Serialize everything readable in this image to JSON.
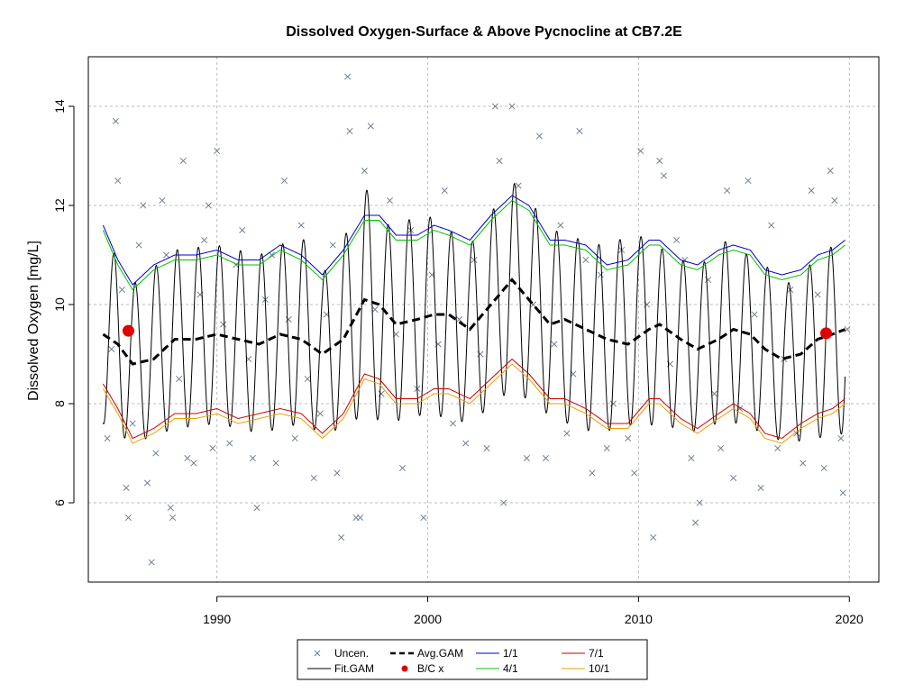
{
  "chart_data": {
    "type": "scatter",
    "title": "Dissolved Oxygen-Surface & Above Pycnocline at CB7.2E",
    "xlabel": "",
    "ylabel": "Dissolved Oxygen [mg/L]",
    "xlim": [
      1983.9,
      2021.4
    ],
    "ylim": [
      4.4,
      15.0
    ],
    "x_ticks": [
      1990,
      2000,
      2010,
      2020
    ],
    "y_ticks": [
      6,
      8,
      10,
      12,
      14
    ],
    "grid": true,
    "legend_position": "bottom-center",
    "legend": [
      {
        "label": "Uncen.",
        "marker": "x",
        "color": "#6b7b8c"
      },
      {
        "label": "Fit.GAM",
        "line": "solid",
        "color": "#000000"
      },
      {
        "label": "Avg.GAM",
        "line": "dashed",
        "color": "#000000"
      },
      {
        "label": "B/C x",
        "marker": "dot",
        "color": "#e00000"
      },
      {
        "label": "1/1",
        "line": "solid",
        "color": "#0000cc"
      },
      {
        "label": "4/1",
        "line": "solid",
        "color": "#00c000"
      },
      {
        "label": "7/1",
        "line": "solid",
        "color": "#cc0000"
      },
      {
        "label": "10/1",
        "line": "solid",
        "color": "#e8a000"
      }
    ],
    "series": [
      {
        "name": "Uncen.",
        "kind": "points",
        "color": "#6b7b8c",
        "points": [
          [
            1984.8,
            7.3
          ],
          [
            1985.0,
            9.1
          ],
          [
            1985.2,
            13.7
          ],
          [
            1985.3,
            12.5
          ],
          [
            1985.5,
            10.3
          ],
          [
            1985.7,
            6.3
          ],
          [
            1985.8,
            5.7
          ],
          [
            1986.0,
            7.6
          ],
          [
            1986.3,
            11.2
          ],
          [
            1986.5,
            12.0
          ],
          [
            1986.7,
            6.4
          ],
          [
            1986.9,
            4.8
          ],
          [
            1987.1,
            7.0
          ],
          [
            1987.4,
            12.1
          ],
          [
            1987.6,
            11.0
          ],
          [
            1987.8,
            5.9
          ],
          [
            1987.9,
            5.7
          ],
          [
            1988.2,
            8.5
          ],
          [
            1988.4,
            12.9
          ],
          [
            1988.6,
            6.9
          ],
          [
            1988.9,
            6.8
          ],
          [
            1989.2,
            10.2
          ],
          [
            1989.4,
            11.3
          ],
          [
            1989.6,
            12.0
          ],
          [
            1989.8,
            7.1
          ],
          [
            1990.0,
            13.1
          ],
          [
            1990.3,
            9.6
          ],
          [
            1990.6,
            7.2
          ],
          [
            1990.9,
            10.8
          ],
          [
            1991.2,
            11.5
          ],
          [
            1991.5,
            8.9
          ],
          [
            1991.7,
            6.9
          ],
          [
            1991.9,
            5.9
          ],
          [
            1992.3,
            10.1
          ],
          [
            1992.6,
            11.0
          ],
          [
            1992.8,
            6.8
          ],
          [
            1993.2,
            12.5
          ],
          [
            1993.4,
            9.7
          ],
          [
            1993.7,
            7.3
          ],
          [
            1994.0,
            11.6
          ],
          [
            1994.3,
            8.5
          ],
          [
            1994.6,
            6.5
          ],
          [
            1994.9,
            7.8
          ],
          [
            1995.2,
            9.8
          ],
          [
            1995.5,
            11.2
          ],
          [
            1995.7,
            6.6
          ],
          [
            1995.9,
            5.3
          ],
          [
            1996.2,
            14.6
          ],
          [
            1996.3,
            13.5
          ],
          [
            1996.6,
            5.7
          ],
          [
            1996.8,
            5.7
          ],
          [
            1997.0,
            12.7
          ],
          [
            1997.3,
            13.6
          ],
          [
            1997.5,
            9.9
          ],
          [
            1997.8,
            8.2
          ],
          [
            1998.2,
            12.1
          ],
          [
            1998.5,
            9.4
          ],
          [
            1998.8,
            6.7
          ],
          [
            1999.2,
            11.5
          ],
          [
            1999.5,
            8.3
          ],
          [
            1999.8,
            5.7
          ],
          [
            2000.2,
            10.6
          ],
          [
            2000.5,
            9.2
          ],
          [
            2000.8,
            12.3
          ],
          [
            2001.2,
            7.6
          ],
          [
            2001.5,
            9.7
          ],
          [
            2001.8,
            7.2
          ],
          [
            2002.2,
            10.9
          ],
          [
            2002.5,
            9.0
          ],
          [
            2002.8,
            7.1
          ],
          [
            2003.2,
            14.0
          ],
          [
            2003.4,
            12.9
          ],
          [
            2003.6,
            6.0
          ],
          [
            2004.0,
            14.0
          ],
          [
            2004.3,
            12.4
          ],
          [
            2004.7,
            6.9
          ],
          [
            2005.0,
            10.0
          ],
          [
            2005.3,
            13.4
          ],
          [
            2005.6,
            6.9
          ],
          [
            2006.0,
            9.2
          ],
          [
            2006.3,
            11.6
          ],
          [
            2006.6,
            7.4
          ],
          [
            2006.9,
            8.6
          ],
          [
            2007.2,
            13.5
          ],
          [
            2007.5,
            10.9
          ],
          [
            2007.8,
            6.6
          ],
          [
            2008.2,
            10.6
          ],
          [
            2008.5,
            7.1
          ],
          [
            2008.8,
            8.0
          ],
          [
            2009.2,
            11.1
          ],
          [
            2009.5,
            7.3
          ],
          [
            2009.8,
            6.6
          ],
          [
            2010.1,
            13.1
          ],
          [
            2010.4,
            10.0
          ],
          [
            2010.7,
            5.3
          ],
          [
            2011.0,
            12.9
          ],
          [
            2011.2,
            12.6
          ],
          [
            2011.5,
            8.8
          ],
          [
            2011.8,
            11.3
          ],
          [
            2012.2,
            10.9
          ],
          [
            2012.5,
            6.9
          ],
          [
            2012.7,
            5.6
          ],
          [
            2012.9,
            6.0
          ],
          [
            2013.3,
            10.5
          ],
          [
            2013.6,
            8.2
          ],
          [
            2013.9,
            7.1
          ],
          [
            2014.2,
            12.3
          ],
          [
            2014.5,
            6.5
          ],
          [
            2014.8,
            7.9
          ],
          [
            2015.2,
            12.5
          ],
          [
            2015.5,
            9.8
          ],
          [
            2015.8,
            6.3
          ],
          [
            2016.3,
            11.6
          ],
          [
            2016.6,
            7.1
          ],
          [
            2016.9,
            8.9
          ],
          [
            2017.2,
            10.3
          ],
          [
            2017.5,
            7.4
          ],
          [
            2017.8,
            6.8
          ],
          [
            2018.2,
            12.3
          ],
          [
            2018.5,
            10.2
          ],
          [
            2018.8,
            6.7
          ],
          [
            2019.1,
            12.7
          ],
          [
            2019.3,
            12.1
          ],
          [
            2019.6,
            7.3
          ],
          [
            2019.7,
            6.2
          ],
          [
            2019.9,
            9.5
          ]
        ]
      },
      {
        "name": "Fit.GAM",
        "kind": "seasonal-line",
        "color": "#000000",
        "x": [
          1984.6,
          1986,
          1988,
          1990,
          1992,
          1994,
          1995,
          1996,
          1997,
          1998,
          2000,
          2002,
          2004,
          2006,
          2008,
          2010,
          2012,
          2013,
          2014,
          2016,
          2017,
          2019.8
        ],
        "mean": [
          9.5,
          8.8,
          9.3,
          9.4,
          9.2,
          9.5,
          9.0,
          9.4,
          10.1,
          9.6,
          9.8,
          9.4,
          10.4,
          9.6,
          9.3,
          9.5,
          9.2,
          9.1,
          9.5,
          9.1,
          8.8,
          9.4
        ],
        "amplitude": [
          1.9,
          1.6,
          1.8,
          1.8,
          1.8,
          1.9,
          1.6,
          1.9,
          2.3,
          2.0,
          2.0,
          1.8,
          2.1,
          1.9,
          1.9,
          1.9,
          1.7,
          1.7,
          1.8,
          1.7,
          1.6,
          2.0
        ],
        "period_years": 1
      },
      {
        "name": "Avg.GAM",
        "kind": "line",
        "color": "#000000",
        "x": [
          1984.6,
          1985.3,
          1986.0,
          1987.0,
          1988.0,
          1989.0,
          1990.0,
          1991.0,
          1992.0,
          1993.0,
          1994.0,
          1995.0,
          1996.0,
          1997.0,
          1997.7,
          1998.5,
          1999.5,
          2000.3,
          2001.0,
          2002.0,
          2003.0,
          2004.0,
          2004.8,
          2005.8,
          2006.5,
          2007.5,
          2008.5,
          2009.5,
          2010.5,
          2011.0,
          2012.0,
          2012.8,
          2013.8,
          2014.5,
          2015.3,
          2016.0,
          2016.8,
          2017.7,
          2018.5,
          2019.2,
          2019.8
        ],
        "y": [
          9.4,
          9.2,
          8.8,
          8.9,
          9.3,
          9.3,
          9.4,
          9.3,
          9.2,
          9.4,
          9.3,
          9.0,
          9.3,
          10.1,
          10.0,
          9.6,
          9.7,
          9.8,
          9.8,
          9.5,
          10.0,
          10.5,
          10.1,
          9.6,
          9.7,
          9.5,
          9.3,
          9.2,
          9.5,
          9.6,
          9.3,
          9.1,
          9.3,
          9.5,
          9.4,
          9.1,
          8.9,
          9.0,
          9.3,
          9.4,
          9.5
        ],
        "dashed": true
      },
      {
        "name": "1/1",
        "kind": "line",
        "color": "#0000cc",
        "x": [
          1984.6,
          1985.3,
          1986.0,
          1987.0,
          1988.0,
          1989.0,
          1990.0,
          1991.0,
          1992.0,
          1993.0,
          1994.0,
          1995.0,
          1996.0,
          1997.0,
          1997.7,
          1998.5,
          1999.5,
          2000.3,
          2001.0,
          2002.0,
          2003.0,
          2004.0,
          2004.8,
          2005.8,
          2006.5,
          2007.5,
          2008.5,
          2009.5,
          2010.5,
          2011.0,
          2012.0,
          2012.8,
          2013.8,
          2014.5,
          2015.3,
          2016.0,
          2016.8,
          2017.7,
          2018.5,
          2019.2,
          2019.8
        ],
        "y": [
          11.6,
          10.9,
          10.4,
          10.8,
          11.0,
          11.0,
          11.1,
          10.9,
          10.9,
          11.2,
          11.0,
          10.6,
          11.1,
          11.8,
          11.8,
          11.4,
          11.4,
          11.6,
          11.5,
          11.3,
          11.8,
          12.2,
          12.0,
          11.3,
          11.3,
          11.2,
          10.8,
          10.9,
          11.3,
          11.3,
          10.9,
          10.8,
          11.1,
          11.2,
          11.1,
          10.7,
          10.6,
          10.7,
          11.0,
          11.1,
          11.3
        ]
      },
      {
        "name": "4/1",
        "kind": "line",
        "color": "#00c000",
        "x": [
          1984.6,
          1985.3,
          1986.0,
          1987.0,
          1988.0,
          1989.0,
          1990.0,
          1991.0,
          1992.0,
          1993.0,
          1994.0,
          1995.0,
          1996.0,
          1997.0,
          1997.7,
          1998.5,
          1999.5,
          2000.3,
          2001.0,
          2002.0,
          2003.0,
          2004.0,
          2004.8,
          2005.8,
          2006.5,
          2007.5,
          2008.5,
          2009.5,
          2010.5,
          2011.0,
          2012.0,
          2012.8,
          2013.8,
          2014.5,
          2015.3,
          2016.0,
          2016.8,
          2017.7,
          2018.5,
          2019.2,
          2019.8
        ],
        "y": [
          11.5,
          10.8,
          10.3,
          10.7,
          10.9,
          10.9,
          11.0,
          10.8,
          10.8,
          11.1,
          10.9,
          10.5,
          11.0,
          11.7,
          11.7,
          11.3,
          11.3,
          11.5,
          11.4,
          11.2,
          11.7,
          12.1,
          11.9,
          11.2,
          11.2,
          11.1,
          10.7,
          10.8,
          11.2,
          11.2,
          10.8,
          10.7,
          11.0,
          11.1,
          11.0,
          10.6,
          10.5,
          10.6,
          10.9,
          11.0,
          11.2
        ]
      },
      {
        "name": "7/1",
        "kind": "line",
        "color": "#cc0000",
        "x": [
          1984.6,
          1985.3,
          1986.0,
          1987.0,
          1988.0,
          1989.0,
          1990.0,
          1991.0,
          1992.0,
          1993.0,
          1994.0,
          1995.0,
          1996.0,
          1997.0,
          1997.7,
          1998.5,
          1999.5,
          2000.3,
          2001.0,
          2002.0,
          2003.0,
          2004.0,
          2004.8,
          2005.8,
          2006.5,
          2007.5,
          2008.5,
          2009.5,
          2010.5,
          2011.0,
          2012.0,
          2012.8,
          2013.8,
          2014.5,
          2015.3,
          2016.0,
          2016.8,
          2017.7,
          2018.5,
          2019.2,
          2019.8
        ],
        "y": [
          8.4,
          7.9,
          7.3,
          7.5,
          7.8,
          7.8,
          7.9,
          7.7,
          7.8,
          7.9,
          7.8,
          7.4,
          7.8,
          8.6,
          8.5,
          8.1,
          8.1,
          8.3,
          8.3,
          8.1,
          8.5,
          8.9,
          8.6,
          8.1,
          8.1,
          7.9,
          7.6,
          7.6,
          8.1,
          8.1,
          7.7,
          7.5,
          7.8,
          8.0,
          7.8,
          7.4,
          7.3,
          7.6,
          7.8,
          7.9,
          8.1
        ]
      },
      {
        "name": "10/1",
        "kind": "line",
        "color": "#e8a000",
        "x": [
          1984.6,
          1985.3,
          1986.0,
          1987.0,
          1988.0,
          1989.0,
          1990.0,
          1991.0,
          1992.0,
          1993.0,
          1994.0,
          1995.0,
          1996.0,
          1997.0,
          1997.7,
          1998.5,
          1999.5,
          2000.3,
          2001.0,
          2002.0,
          2003.0,
          2004.0,
          2004.8,
          2005.8,
          2006.5,
          2007.5,
          2008.5,
          2009.5,
          2010.5,
          2011.0,
          2012.0,
          2012.8,
          2013.8,
          2014.5,
          2015.3,
          2016.0,
          2016.8,
          2017.7,
          2018.5,
          2019.2,
          2019.8
        ],
        "y": [
          8.3,
          7.8,
          7.2,
          7.4,
          7.7,
          7.7,
          7.8,
          7.6,
          7.7,
          7.8,
          7.7,
          7.3,
          7.7,
          8.5,
          8.4,
          8.0,
          8.0,
          8.2,
          8.2,
          8.0,
          8.4,
          8.8,
          8.5,
          8.0,
          8.0,
          7.8,
          7.5,
          7.5,
          8.0,
          8.0,
          7.6,
          7.4,
          7.7,
          7.9,
          7.7,
          7.3,
          7.2,
          7.5,
          7.7,
          7.8,
          8.0
        ]
      },
      {
        "name": "B/C x",
        "kind": "points",
        "color": "#e00000",
        "points": [
          [
            1985.8,
            9.47
          ],
          [
            2018.9,
            9.42
          ]
        ]
      }
    ]
  }
}
